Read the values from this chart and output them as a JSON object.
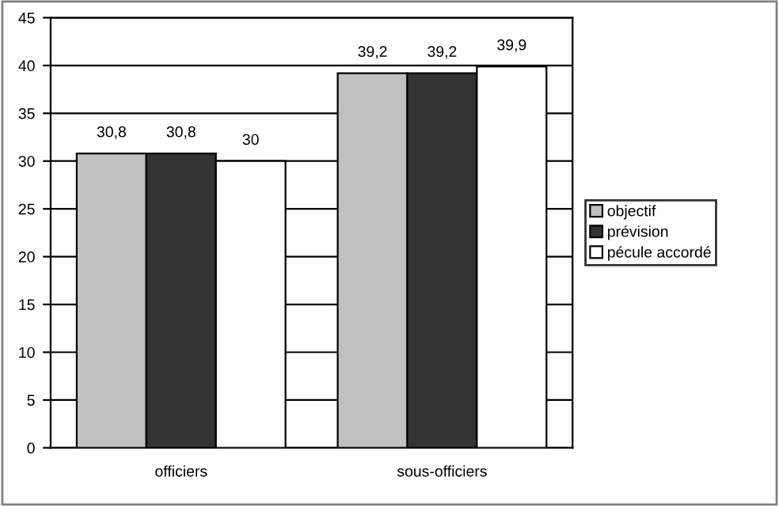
{
  "chart_data": {
    "type": "bar",
    "categories": [
      "officiers",
      "sous-officiers"
    ],
    "series": [
      {
        "name": "objectif",
        "color": "#c0c0c0",
        "values": [
          30.8,
          39.2
        ],
        "value_labels": [
          "30,8",
          "39,2"
        ]
      },
      {
        "name": "prévision",
        "color": "#333333",
        "values": [
          30.8,
          39.2
        ],
        "value_labels": [
          "30,8",
          "39,2"
        ]
      },
      {
        "name": "pécule accordé",
        "color": "#ffffff",
        "values": [
          30,
          39.9
        ],
        "value_labels": [
          "30",
          "39,9"
        ]
      }
    ],
    "ylim": [
      0,
      45
    ],
    "yticks": [
      0,
      5,
      10,
      15,
      20,
      25,
      30,
      35,
      40,
      45
    ],
    "grid": "y",
    "legend": "right"
  }
}
